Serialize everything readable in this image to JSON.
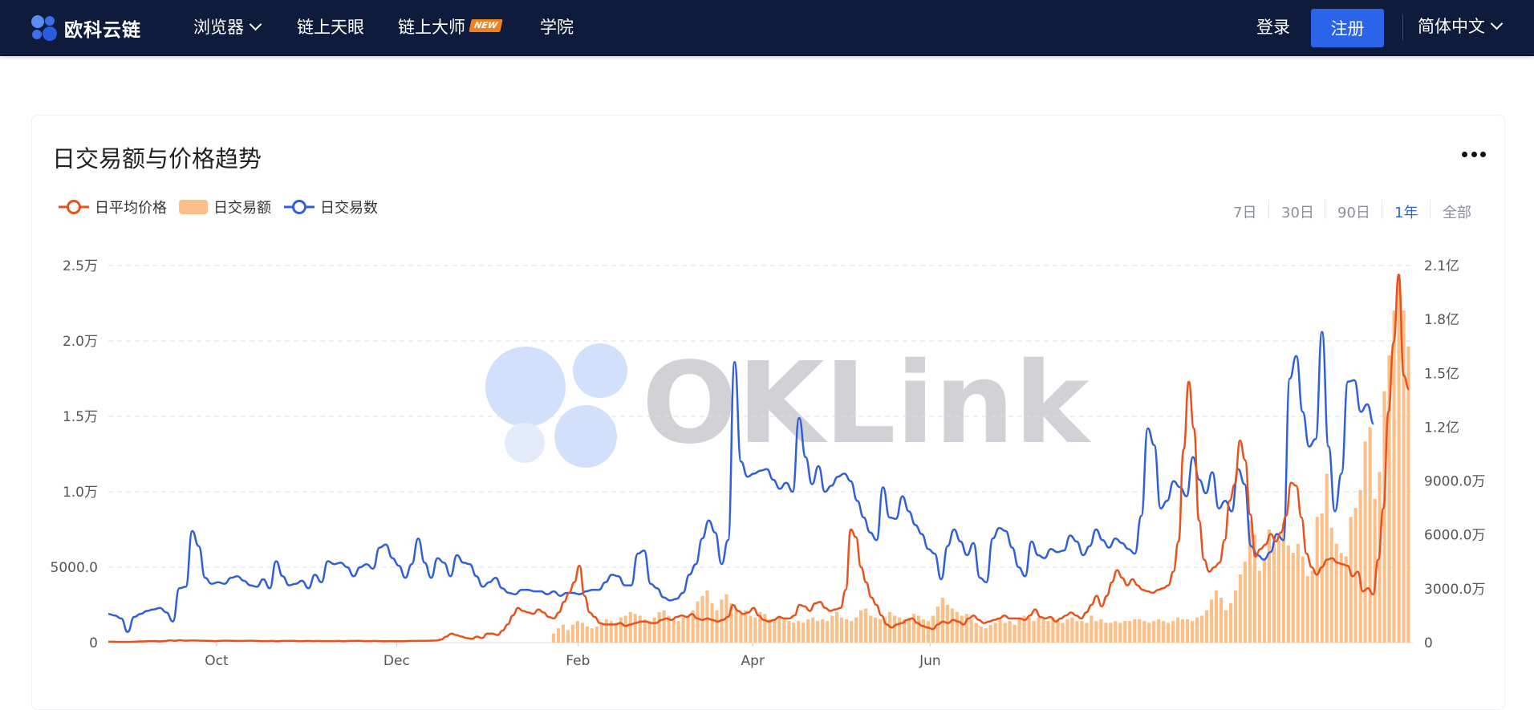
{
  "nav": {
    "logo_text": "欧科云链",
    "items": [
      {
        "label": "浏览器",
        "has_dropdown": true
      },
      {
        "label": "链上天眼"
      },
      {
        "label": "链上大师",
        "badge": "NEW"
      },
      {
        "label": "学院"
      }
    ],
    "login": "登录",
    "register": "注册",
    "language": "简体中文"
  },
  "card": {
    "title": "日交易额与价格趋势",
    "legend": [
      {
        "label": "日平均价格",
        "color": "#e8521a",
        "shape": "line-circle"
      },
      {
        "label": "日交易额",
        "color": "#fbbf87",
        "shape": "rect"
      },
      {
        "label": "日交易数",
        "color": "#2f5fd9",
        "shape": "line-circle"
      }
    ],
    "ranges": [
      "7日",
      "30日",
      "90日",
      "1年",
      "全部"
    ],
    "active_range": "1年",
    "watermark": "OKLink"
  },
  "chart_data": {
    "type": "line",
    "x_ticks": [
      "Oct",
      "Dec",
      "Feb",
      "Apr",
      "Jun"
    ],
    "left_axis": {
      "ticks": [
        "0",
        "5000.0",
        "1.0万",
        "1.5万",
        "2.0万",
        "2.5万"
      ],
      "range": [
        0,
        25000
      ]
    },
    "right_axis": {
      "ticks": [
        "0",
        "3000.0万",
        "6000.0万",
        "9000.0万",
        "1.2亿",
        "1.5亿",
        "1.8亿",
        "2.1亿"
      ],
      "range": [
        0,
        210000000
      ]
    },
    "grid": true,
    "legend_position": "top-left",
    "series": [
      {
        "name": "日交易数",
        "axis": "left",
        "color": "#2f5fd9",
        "values": [
          1900,
          1800,
          1600,
          700,
          1700,
          1900,
          2100,
          2200,
          2300,
          2000,
          1400,
          3600,
          3700,
          7400,
          6400,
          4300,
          3900,
          4000,
          3900,
          4300,
          4400,
          4100,
          3800,
          3700,
          4200,
          3600,
          5400,
          4400,
          3800,
          3900,
          4100,
          3600,
          4500,
          4000,
          5400,
          5200,
          5300,
          5000,
          4400,
          5000,
          5200,
          4900,
          6300,
          6500,
          5600,
          5100,
          4300,
          5200,
          6900,
          5300,
          4300,
          5600,
          5300,
          4400,
          5800,
          5300,
          5200,
          4400,
          3700,
          4000,
          4300,
          3600,
          3300,
          3200,
          3500,
          3500,
          3400,
          3400,
          3200,
          3400,
          3100,
          3300,
          3300,
          3200,
          3400,
          3500,
          3500,
          4000,
          4500,
          4400,
          3800,
          3800,
          5900,
          6100,
          3900,
          3600,
          3000,
          2800,
          2900,
          3300,
          4500,
          5200,
          6900,
          8100,
          7300,
          5200,
          6800,
          18600,
          12000,
          11000,
          11200,
          11400,
          11500,
          10800,
          10200,
          10600,
          10000,
          14900,
          12300,
          10500,
          11700,
          10000,
          10400,
          11000,
          11200,
          10700,
          9400,
          8300,
          7300,
          6800,
          10300,
          8300,
          8200,
          9700,
          8700,
          7800,
          7200,
          6200,
          5900,
          4200,
          6400,
          7500,
          6700,
          5800,
          6600,
          4300,
          4000,
          6900,
          7600,
          7400,
          6300,
          5000,
          4400,
          6700,
          5800,
          5600,
          6200,
          6000,
          6100,
          7100,
          6700,
          5800,
          6400,
          7500,
          6800,
          6300,
          6900,
          6600,
          6200,
          5900,
          8400,
          14200,
          13100,
          8900,
          9400,
          10700,
          10300,
          9700,
          12300,
          10800,
          9900,
          11300,
          8900,
          9400,
          8700,
          11500,
          10500,
          6400,
          5800,
          5500,
          6000,
          7200,
          6800,
          17500,
          19000,
          15300,
          13000,
          13500,
          20600,
          13000,
          8700,
          11200,
          17300,
          17400,
          15300,
          15800,
          14500
        ],
        "x_end": 0.97
      },
      {
        "name": "日平均价格",
        "axis": "left",
        "color": "#e8521a",
        "values": [
          60,
          60,
          50,
          50,
          50,
          60,
          80,
          80,
          100,
          100,
          80,
          100,
          150,
          120,
          160,
          130,
          140,
          140,
          130,
          120,
          110,
          100,
          120,
          130,
          120,
          110,
          110,
          120,
          130,
          110,
          100,
          100,
          110,
          90,
          110,
          110,
          120,
          100,
          100,
          110,
          100,
          110,
          100,
          100,
          100,
          110,
          90,
          110,
          110,
          120,
          100,
          100,
          110,
          100,
          90,
          100,
          90,
          90,
          100,
          110,
          110,
          120,
          120,
          130,
          140,
          200,
          400,
          600,
          500,
          400,
          300,
          250,
          400,
          300,
          600,
          600,
          500,
          800,
          1200,
          1800,
          2300,
          2100,
          2000,
          1900,
          2200,
          2000,
          1700,
          1600,
          2000,
          2700,
          3300,
          4000,
          5100,
          3100,
          2000,
          1700,
          1300,
          1200,
          1200,
          1200,
          1300,
          1100,
          1200,
          1300,
          1400,
          1400,
          1300,
          1300,
          1500,
          1600,
          1500,
          1700,
          1800,
          1700,
          1900,
          1600,
          1500,
          1600,
          1500,
          1400,
          1500,
          1700,
          2500,
          2100,
          1900,
          2000,
          2300,
          1800,
          1500,
          1400,
          1500,
          1700,
          1600,
          1600,
          1800,
          2500,
          2400,
          2100,
          2600,
          2700,
          2300,
          2100,
          2200,
          2300,
          3500,
          7500,
          7000,
          5000,
          4000,
          3000,
          2500,
          1800,
          1200,
          1000,
          1200,
          1300,
          1500,
          1600,
          1300,
          1100,
          1000,
          900,
          1200,
          1400,
          1300,
          1500,
          1400,
          1200,
          1600,
          1800,
          1500,
          1300,
          1400,
          1500,
          1600,
          1800,
          1600,
          1600,
          1600,
          1500,
          1800,
          2200,
          1700,
          1600,
          1700,
          1400,
          1600,
          1800,
          2000,
          1800,
          1600,
          2000,
          2500,
          3100,
          2400,
          3100,
          4000,
          4800,
          4300,
          3800,
          4200,
          3800,
          3500,
          3400,
          3300,
          3500,
          3600,
          3800,
          4700,
          6700,
          12800,
          17300,
          14200,
          8100,
          5500,
          4700,
          5000,
          5300,
          6800,
          9400,
          10500,
          13400,
          12100,
          8500,
          5700,
          6200,
          6500,
          7200,
          6700,
          7300,
          8400,
          10600,
          10400,
          8300,
          5900,
          5000,
          4500,
          5000,
          5500,
          5600,
          5300,
          5200,
          5100,
          4400,
          4700,
          3400,
          3600,
          3200,
          5500,
          8900,
          15300,
          19900,
          24400,
          17700,
          16800
        ],
        "x_end": 0.997
      },
      {
        "name": "日交易额",
        "axis": "right",
        "color": "#fbbf87",
        "type": "bar",
        "values": [
          5000000,
          8000000,
          10000000,
          7000000,
          10000000,
          12000000,
          11000000,
          9000000,
          8000000,
          9000000,
          11000000,
          13000000,
          12000000,
          11000000,
          14000000,
          15000000,
          17000000,
          16000000,
          15000000,
          13000000,
          12000000,
          14000000,
          17000000,
          18000000,
          15000000,
          13000000,
          12000000,
          14000000,
          15000000,
          18000000,
          23000000,
          26000000,
          29000000,
          22000000,
          18000000,
          24000000,
          27000000,
          22000000,
          19000000,
          16000000,
          18000000,
          15000000,
          14000000,
          17000000,
          16000000,
          13000000,
          12000000,
          15000000,
          14000000,
          12000000,
          11000000,
          12000000,
          11000000,
          13000000,
          14000000,
          12000000,
          13000000,
          12000000,
          15000000,
          17000000,
          14000000,
          13000000,
          12000000,
          14000000,
          18000000,
          19000000,
          15000000,
          14000000,
          13000000,
          14000000,
          17000000,
          15000000,
          14000000,
          13000000,
          14000000,
          16000000,
          15000000,
          13000000,
          12000000,
          15000000,
          20000000,
          25000000,
          21000000,
          19000000,
          17000000,
          15000000,
          16000000,
          13000000,
          11000000,
          9000000,
          8000000,
          10000000,
          11000000,
          13000000,
          11000000,
          12000000,
          10000000,
          13000000,
          15000000,
          14000000,
          12000000,
          14000000,
          13000000,
          12000000,
          14000000,
          13000000,
          11000000,
          13000000,
          14000000,
          12000000,
          12000000,
          11000000,
          15000000,
          12000000,
          13000000,
          11000000,
          11000000,
          12000000,
          11000000,
          12000000,
          12000000,
          13000000,
          13000000,
          12000000,
          11000000,
          12000000,
          13000000,
          12000000,
          11000000,
          12000000,
          14000000,
          13000000,
          13000000,
          12000000,
          14000000,
          15000000,
          18000000,
          24000000,
          29000000,
          25000000,
          18000000,
          22000000,
          29000000,
          38000000,
          45000000,
          68000000,
          60000000,
          40000000,
          47000000,
          63000000,
          55000000,
          57000000,
          66000000,
          54000000,
          50000000,
          55000000,
          48000000,
          37000000,
          40000000,
          70000000,
          72000000,
          94000000,
          64000000,
          55000000,
          50000000,
          48000000,
          70000000,
          75000000,
          85000000,
          112000000,
          120000000,
          80000000,
          95000000,
          140000000,
          160000000,
          185000000,
          205000000,
          185000000,
          165000000
        ]
      }
    ]
  }
}
